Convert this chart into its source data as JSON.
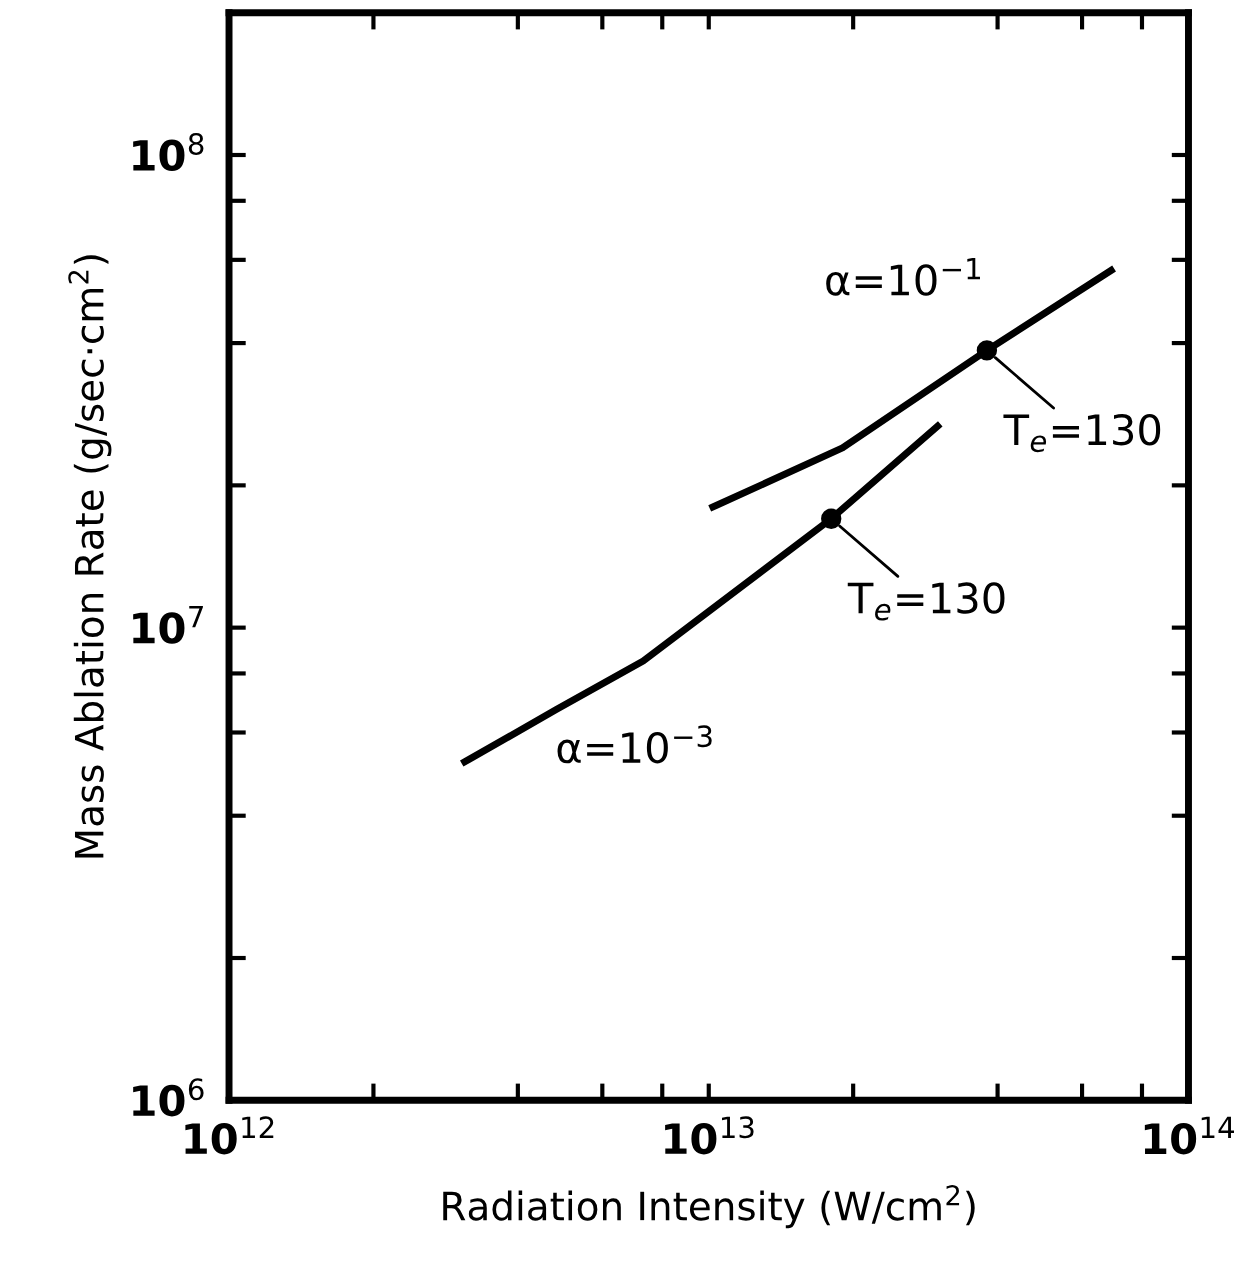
{
  "chart_data": {
    "type": "line",
    "xlabel": "Radiation Intensity (W/cm$^{2}$)",
    "ylabel": "Mass Ablation Rate (g/sec·cm$^{2}$)",
    "log": "xy",
    "grid": false,
    "legend": false,
    "marker": "none",
    "line_style": "solid",
    "xlim": [
      1000000000000.0,
      100000000000000.0
    ],
    "ylim": [
      1000000.0,
      200000000.0
    ],
    "xticks": [
      {
        "value": 1000000000000.0,
        "label": "10$^{12}$"
      },
      {
        "value": 2000000000000.0,
        "label": null
      },
      {
        "value": 4000000000000.0,
        "label": null
      },
      {
        "value": 6000000000000.0,
        "label": null
      },
      {
        "value": 8000000000000.0,
        "label": null
      },
      {
        "value": 10000000000000.0,
        "label": "10$^{13}$"
      },
      {
        "value": 20000000000000.0,
        "label": null
      },
      {
        "value": 40000000000000.0,
        "label": null
      },
      {
        "value": 60000000000000.0,
        "label": null
      },
      {
        "value": 80000000000000.0,
        "label": null
      },
      {
        "value": 100000000000000.0,
        "label": "10$^{14}$"
      }
    ],
    "yticks": [
      {
        "value": 1000000.0,
        "label": "10$^{6}$"
      },
      {
        "value": 2000000.0,
        "label": null
      },
      {
        "value": 4000000.0,
        "label": null
      },
      {
        "value": 6000000.0,
        "label": null
      },
      {
        "value": 8000000.0,
        "label": null
      },
      {
        "value": 10000000.0,
        "label": "10$^{7}$"
      },
      {
        "value": 20000000.0,
        "label": null
      },
      {
        "value": 40000000.0,
        "label": null
      },
      {
        "value": 60000000.0,
        "label": null
      },
      {
        "value": 80000000.0,
        "label": null
      },
      {
        "value": 100000000.0,
        "label": "10$^{8}$"
      }
    ],
    "series": [
      {
        "color": "#000000",
        "x": [
          3100000000000.0,
          4800000000000.0,
          7300000000000.0,
          18000000000000.0,
          30000000000000.0
        ],
        "values": [
          5200000.0,
          6700000.0,
          8500000.0,
          17000000.0,
          26700000.0
        ]
      },
      {
        "color": "#000000",
        "x": [
          10200000000000.0,
          19000000000000.0,
          38000000000000.0,
          69000000000000.0
        ],
        "values": [
          18000000.0,
          24000000.0,
          38600000.0,
          57000000.0
        ]
      },
      {
        "type": "scatter",
        "marker": "circle",
        "color": "#000000",
        "x": [
          18000000000000.0,
          38000000000000.0
        ],
        "values": [
          17000000.0,
          38600000.0
        ]
      }
    ],
    "annotations": [
      "α=10$^{−1}$",
      {
        "text": "T$_{e}$=130",
        "x": 38000000000000.0,
        "y": 38600000.0
      },
      {
        "text": "T$_{e}$=130",
        "x": 18000000000000.0,
        "y": 17000000.0
      },
      "α=10$^{−3}$"
    ]
  }
}
